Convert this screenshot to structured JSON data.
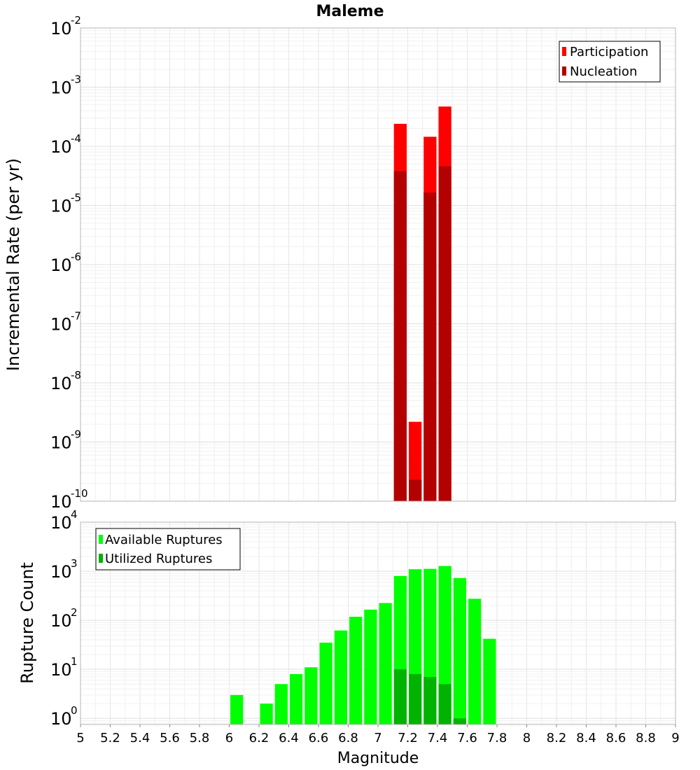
{
  "chart_data": [
    {
      "type": "bar",
      "title": "Maleme",
      "xlabel": "Magnitude",
      "ylabel": "Incremental Rate (per yr)",
      "yscale": "log",
      "ylim": [
        1e-10,
        0.01
      ],
      "xlim": [
        5,
        9
      ],
      "bin_width": 0.1,
      "legend": "top-right",
      "y_ticks": [
        {
          "base": "10",
          "exp": "-10"
        },
        {
          "base": "10",
          "exp": "-9"
        },
        {
          "base": "10",
          "exp": "-8"
        },
        {
          "base": "10",
          "exp": "-7"
        },
        {
          "base": "10",
          "exp": "-6"
        },
        {
          "base": "10",
          "exp": "-5"
        },
        {
          "base": "10",
          "exp": "-4"
        },
        {
          "base": "10",
          "exp": "-3"
        },
        {
          "base": "10",
          "exp": "-2"
        }
      ],
      "series": [
        {
          "name": "Participation",
          "color": "#ff0000",
          "x": [
            7.15,
            7.25,
            7.35,
            7.45
          ],
          "values": [
            0.00024,
            2.2e-09,
            0.000145,
            0.00047
          ]
        },
        {
          "name": "Nucleation",
          "color": "#b30000",
          "x": [
            7.15,
            7.25,
            7.35,
            7.45
          ],
          "values": [
            3.8e-05,
            2.3e-10,
            1.65e-05,
            4.6e-05
          ]
        }
      ]
    },
    {
      "type": "bar",
      "xlabel": "Magnitude",
      "ylabel": "Rupture Count",
      "yscale": "log",
      "ylim": [
        0.75,
        10000.0
      ],
      "xlim": [
        5,
        9
      ],
      "bin_width": 0.1,
      "legend": "top-left",
      "y_ticks": [
        {
          "base": "10",
          "exp": "0"
        },
        {
          "base": "10",
          "exp": "1"
        },
        {
          "base": "10",
          "exp": "2"
        },
        {
          "base": "10",
          "exp": "3"
        },
        {
          "base": "10",
          "exp": "4"
        }
      ],
      "x_ticks": [
        "5",
        "5.2",
        "5.4",
        "5.6",
        "5.8",
        "6",
        "6.2",
        "6.4",
        "6.6",
        "6.8",
        "7",
        "7.2",
        "7.4",
        "7.6",
        "7.8",
        "8",
        "8.2",
        "8.4",
        "8.6",
        "8.8",
        "9"
      ],
      "series": [
        {
          "name": "Available Ruptures",
          "color": "#00ff00",
          "x": [
            6.05,
            6.25,
            6.35,
            6.45,
            6.55,
            6.65,
            6.75,
            6.85,
            6.95,
            7.05,
            7.15,
            7.25,
            7.35,
            7.45,
            7.55,
            7.65,
            7.75
          ],
          "values": [
            3,
            2,
            5,
            8,
            11,
            35,
            62,
            118,
            165,
            225,
            800,
            1100,
            1120,
            1280,
            730,
            275,
            42
          ]
        },
        {
          "name": "Utilized Ruptures",
          "color": "#00b300",
          "x": [
            7.15,
            7.25,
            7.35,
            7.45,
            7.55
          ],
          "values": [
            10,
            8,
            7,
            5,
            1
          ]
        }
      ]
    }
  ]
}
